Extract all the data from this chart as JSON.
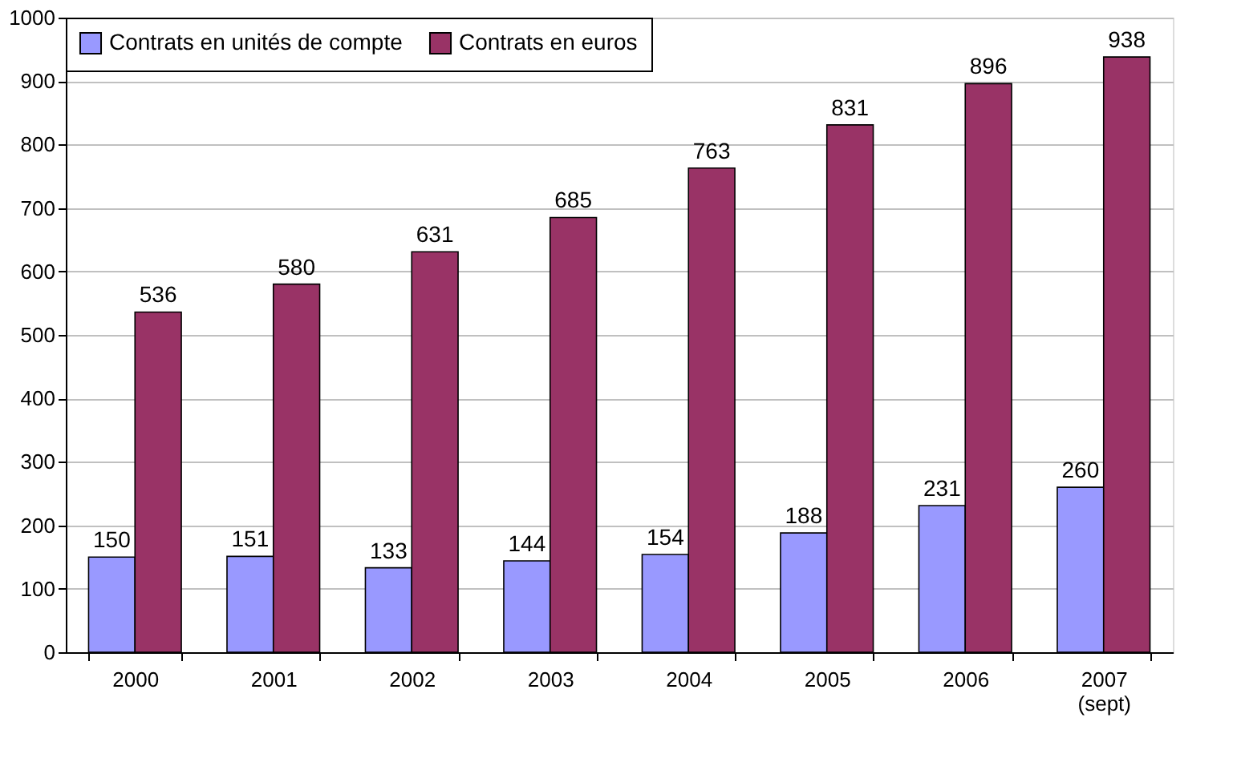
{
  "chart_data": {
    "type": "bar",
    "categories": [
      "2000",
      "2001",
      "2002",
      "2003",
      "2004",
      "2005",
      "2006",
      "2007\n(sept)"
    ],
    "series": [
      {
        "name": "Contrats en unités de compte",
        "color": "#9999ff",
        "values": [
          150,
          151,
          133,
          144,
          154,
          188,
          231,
          260
        ]
      },
      {
        "name": "Contrats en euros",
        "color": "#993366",
        "values": [
          536,
          580,
          631,
          685,
          763,
          831,
          896,
          938
        ]
      }
    ],
    "ylim": [
      0,
      1000
    ],
    "yticks": [
      0,
      100,
      200,
      300,
      400,
      500,
      600,
      700,
      800,
      900,
      1000
    ],
    "grid": "y",
    "legend": "top left",
    "data_labels": true
  }
}
